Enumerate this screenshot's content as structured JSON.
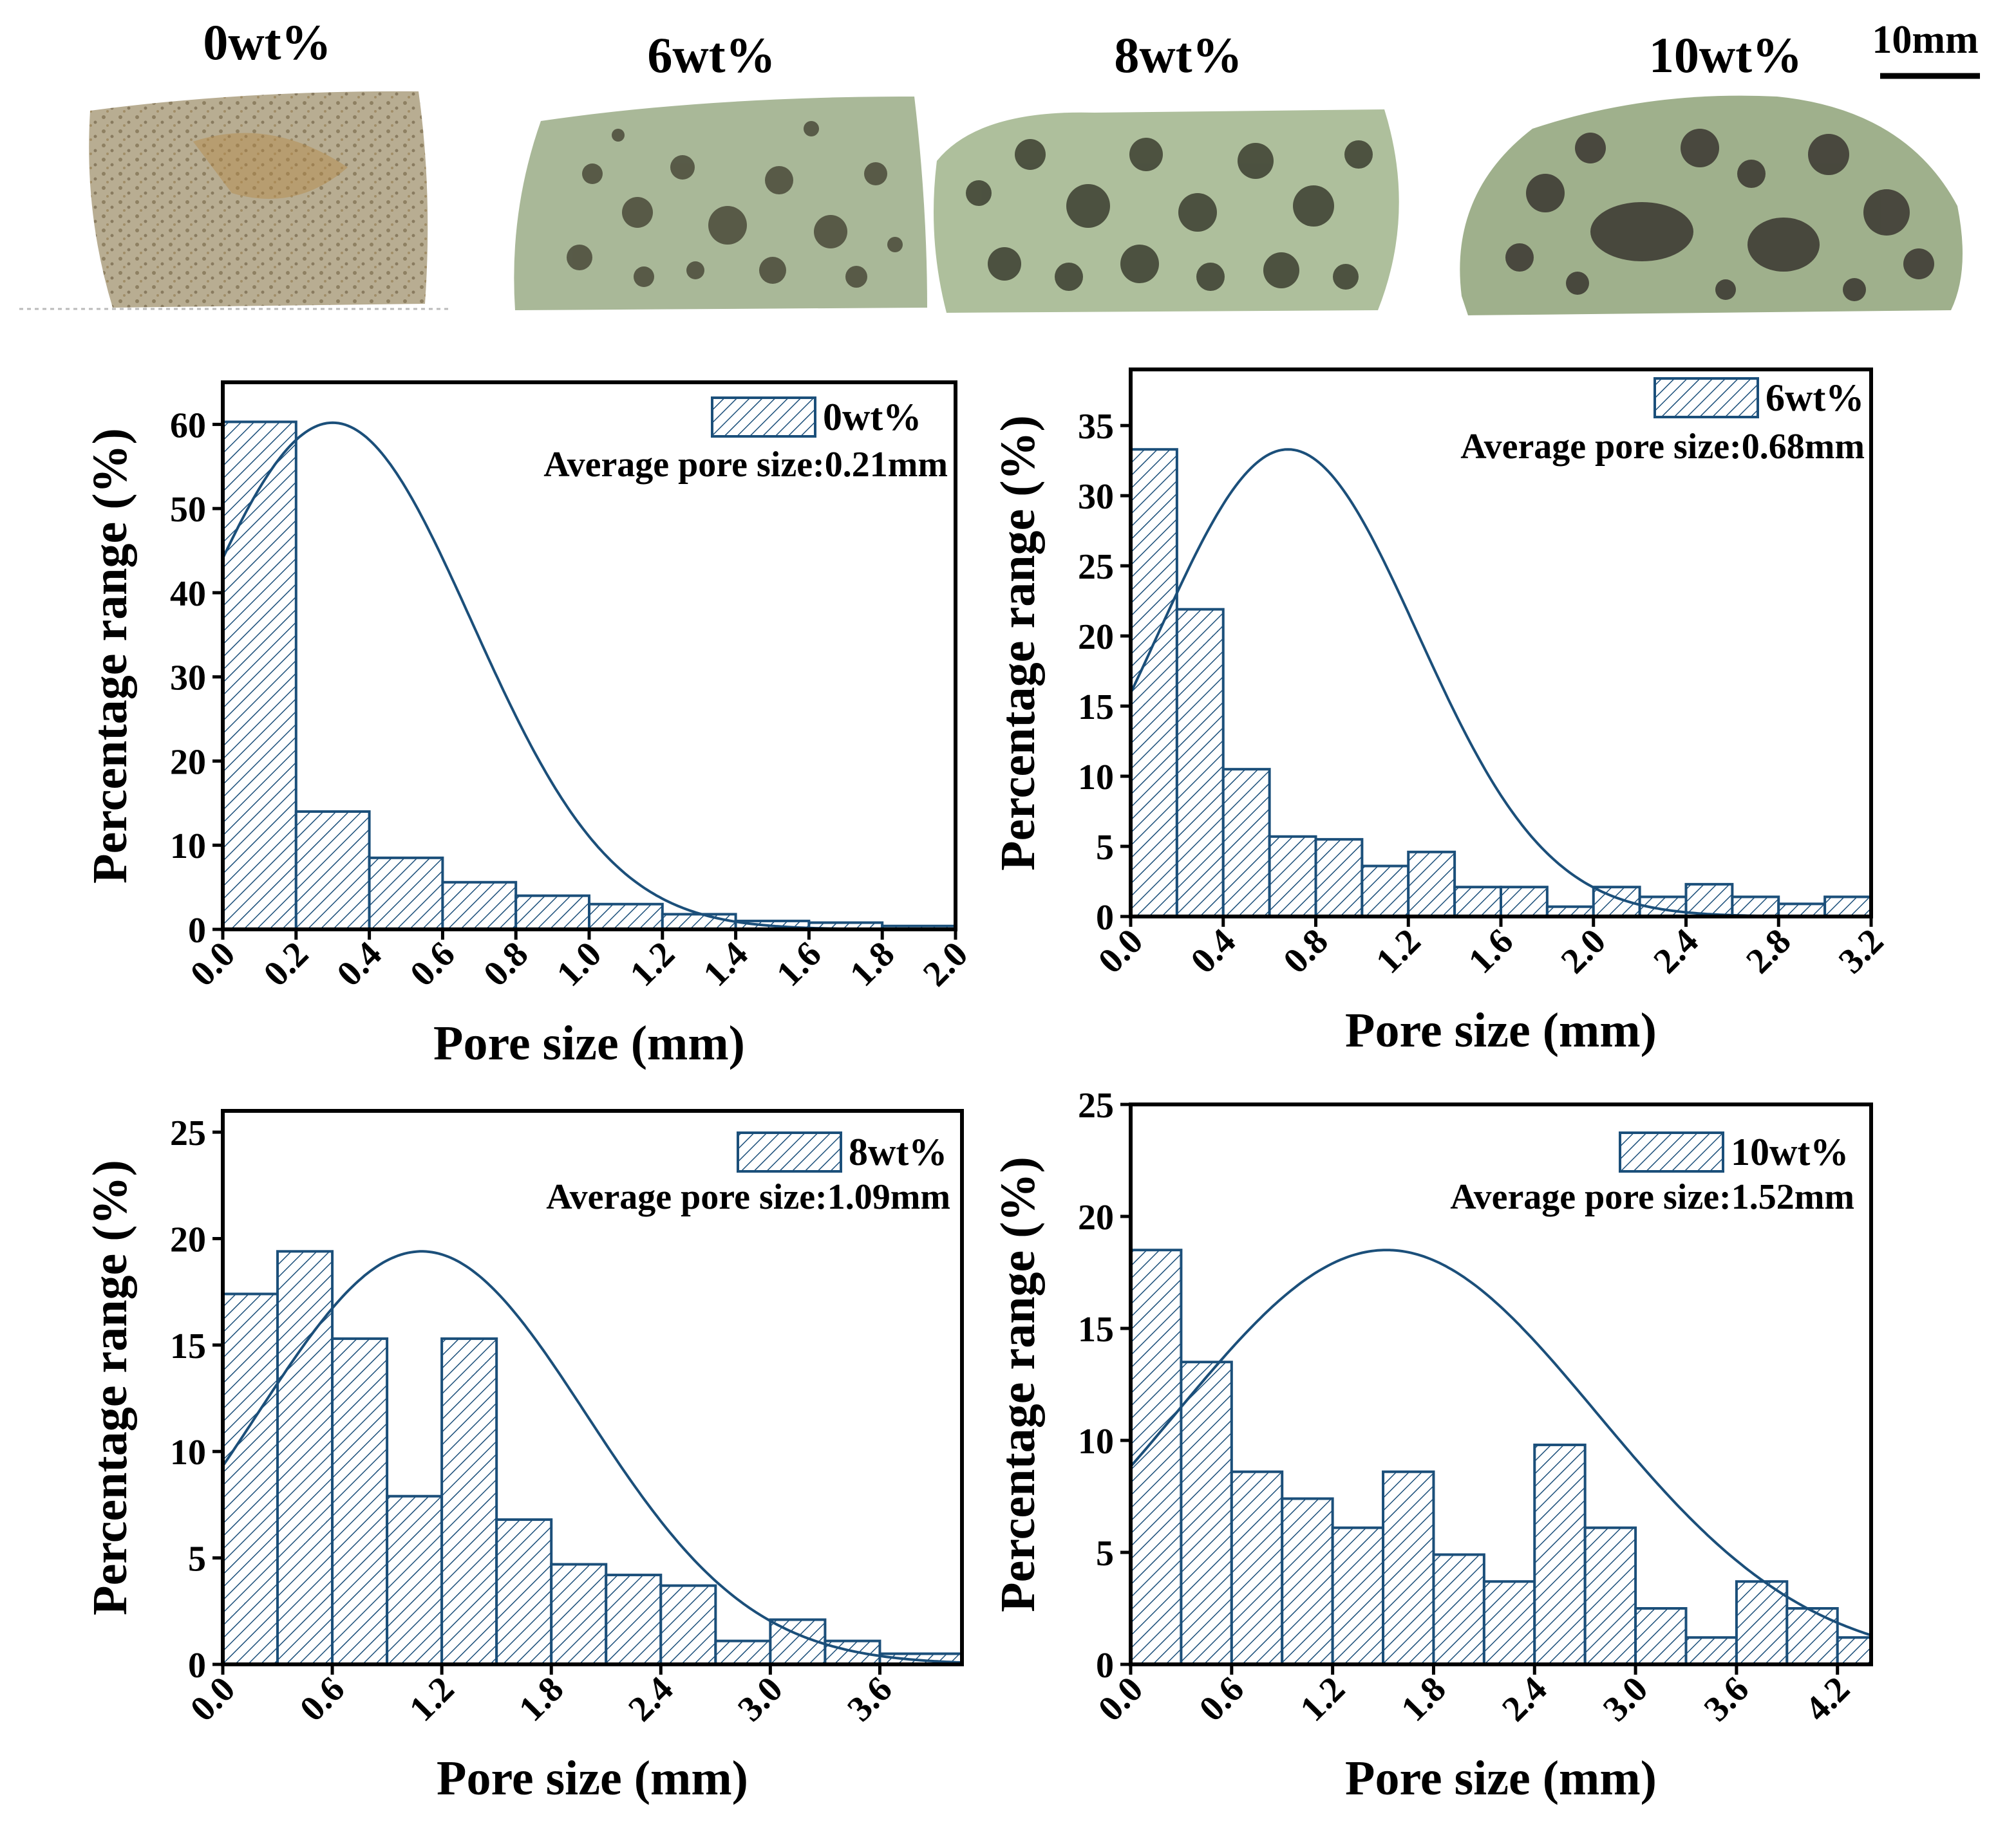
{
  "photos": {
    "scale_bar_label": "10mm",
    "samples": [
      {
        "label": "0wt%",
        "pores": "fine"
      },
      {
        "label": "6wt%",
        "pores": "medium"
      },
      {
        "label": "8wt%",
        "pores": "large"
      },
      {
        "label": "10wt%",
        "pores": "very-large"
      }
    ]
  },
  "colors": {
    "bar": "#1b4f7a",
    "fit_curve": "#1b4f7a",
    "axis": "#000000"
  },
  "chart_data": [
    {
      "type": "bar",
      "subtype": "histogram-with-normal-fit",
      "legend": "0wt%",
      "annotation": "Average pore size:0.21mm",
      "xlabel": "Pore size (mm)",
      "ylabel": "Percentage range (%)",
      "xlim": [
        0,
        2.0
      ],
      "ylim": [
        0,
        65
      ],
      "xticks": [
        0.0,
        0.2,
        0.4,
        0.6,
        0.8,
        1.0,
        1.2,
        1.4,
        1.6,
        1.8,
        2.0
      ],
      "xtick_labels": [
        "0.0",
        "0.2",
        "0.4",
        "0.6",
        "0.8",
        "1.0",
        "1.2",
        "1.4",
        "1.6",
        "1.8",
        "2.0"
      ],
      "yticks": [
        0,
        10,
        20,
        30,
        40,
        50,
        60
      ],
      "ytick_labels": [
        "0",
        "10",
        "20",
        "30",
        "40",
        "50",
        "60"
      ],
      "bin_edges": [
        0,
        0.2,
        0.4,
        0.6,
        0.8,
        1.0,
        1.2,
        1.4,
        1.6,
        1.8,
        2.0
      ],
      "values": [
        60.3,
        14.0,
        8.5,
        5.6,
        4.0,
        3.0,
        1.8,
        1.0,
        0.8,
        0.4
      ],
      "fit": {
        "type": "normal",
        "peak_x": 0.3,
        "peak_y": 60.2,
        "sigma": 0.38
      }
    },
    {
      "type": "bar",
      "subtype": "histogram-with-normal-fit",
      "legend": "6wt%",
      "annotation": "Average pore size:0.68mm",
      "xlabel": "Pore size (mm)",
      "ylabel": "Percentage range (%)",
      "xlim": [
        0,
        3.2
      ],
      "ylim": [
        0,
        39
      ],
      "xticks": [
        0.0,
        0.4,
        0.8,
        1.2,
        1.6,
        2.0,
        2.4,
        2.8,
        3.2
      ],
      "xtick_labels": [
        "0.0",
        "0.4",
        "0.8",
        "1.2",
        "1.6",
        "2.0",
        "2.4",
        "2.8",
        "3.2"
      ],
      "yticks": [
        0,
        5,
        10,
        15,
        20,
        25,
        30,
        35
      ],
      "ytick_labels": [
        "0",
        "5",
        "10",
        "15",
        "20",
        "25",
        "30",
        "35"
      ],
      "bin_edges": [
        0,
        0.2,
        0.4,
        0.6,
        0.8,
        1.0,
        1.2,
        1.4,
        1.6,
        1.8,
        2.0,
        2.2,
        2.4,
        2.6,
        2.8,
        3.0,
        3.2
      ],
      "values": [
        33.3,
        21.9,
        10.5,
        5.7,
        5.5,
        3.6,
        4.6,
        2.1,
        2.1,
        0.7,
        2.1,
        1.4,
        2.3,
        1.4,
        0.9,
        1.4
      ],
      "fit": {
        "type": "normal",
        "peak_x": 0.68,
        "peak_y": 33.3,
        "sigma": 0.56
      }
    },
    {
      "type": "bar",
      "subtype": "histogram-with-normal-fit",
      "legend": "8wt%",
      "annotation": "Average pore size:1.09mm",
      "xlabel": "Pore size (mm)",
      "ylabel": "Percentage range (%)",
      "xlim": [
        0,
        4.05
      ],
      "ylim": [
        0,
        26
      ],
      "xticks": [
        0.0,
        0.6,
        1.2,
        1.8,
        2.4,
        3.0,
        3.6
      ],
      "xtick_labels": [
        "0.0",
        "0.6",
        "1.2",
        "1.8",
        "2.4",
        "3.0",
        "3.6"
      ],
      "yticks": [
        0,
        5,
        10,
        15,
        20,
        25
      ],
      "ytick_labels": [
        "0",
        "5",
        "10",
        "15",
        "20",
        "25"
      ],
      "bin_edges": [
        0,
        0.3,
        0.6,
        0.9,
        1.2,
        1.5,
        1.8,
        2.1,
        2.4,
        2.7,
        3.0,
        3.3,
        3.6,
        4.05
      ],
      "values": [
        17.4,
        19.4,
        15.3,
        7.9,
        15.3,
        6.8,
        4.7,
        4.2,
        3.7,
        1.1,
        2.1,
        1.1,
        0.5
      ],
      "fit": {
        "type": "normal",
        "peak_x": 1.09,
        "peak_y": 19.4,
        "sigma": 0.9
      }
    },
    {
      "type": "bar",
      "subtype": "histogram-with-normal-fit",
      "legend": "10wt%",
      "annotation": "Average pore size:1.52mm",
      "xlabel": "Pore size (mm)",
      "ylabel": "Percentage range (%)",
      "xlim": [
        0,
        4.4
      ],
      "ylim": [
        0,
        25
      ],
      "xticks": [
        0.0,
        0.6,
        1.2,
        1.8,
        2.4,
        3.0,
        3.6,
        4.2
      ],
      "xtick_labels": [
        "0.0",
        "0.6",
        "1.2",
        "1.8",
        "2.4",
        "3.0",
        "3.6",
        "4.2"
      ],
      "yticks": [
        0,
        5,
        10,
        15,
        20,
        25
      ],
      "ytick_labels": [
        "0",
        "5",
        "10",
        "15",
        "20",
        "25"
      ],
      "bin_edges": [
        0,
        0.3,
        0.6,
        0.9,
        1.2,
        1.5,
        1.8,
        2.1,
        2.4,
        2.7,
        3.0,
        3.3,
        3.6,
        3.9,
        4.2,
        4.4
      ],
      "values": [
        18.5,
        13.5,
        8.6,
        7.4,
        6.1,
        8.6,
        4.9,
        3.7,
        9.8,
        6.1,
        2.5,
        1.2,
        3.7,
        2.5,
        1.2
      ],
      "fit": {
        "type": "normal",
        "peak_x": 1.52,
        "peak_y": 18.5,
        "sigma": 1.25
      }
    }
  ]
}
